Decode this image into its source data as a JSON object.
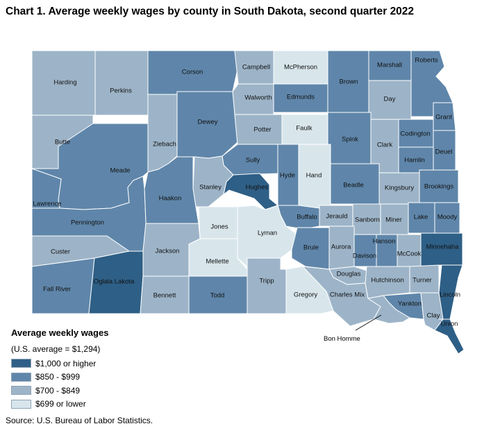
{
  "title": "Chart 1. Average weekly wages by county in South Dakota, second quarter 2022",
  "legend": {
    "title": "Average weekly wages",
    "note": "(U.S. average = $1,294)",
    "items": [
      {
        "label": "$1,000 or higher",
        "color": "#2e5f86"
      },
      {
        "label": "$850 - $999",
        "color": "#5f86aa"
      },
      {
        "label": "$700 - $849",
        "color": "#9db4c8"
      },
      {
        "label": "$699 or lower",
        "color": "#d8e6ec"
      }
    ]
  },
  "source": "Source: U.S. Bureau of Labor Statistics.",
  "callout_label": "Bon Homme",
  "counties": [
    {
      "name": "Harding",
      "cls": 2
    },
    {
      "name": "Perkins",
      "cls": 2
    },
    {
      "name": "Corson",
      "cls": 1
    },
    {
      "name": "Campbell",
      "cls": 2
    },
    {
      "name": "McPherson",
      "cls": 3
    },
    {
      "name": "Brown",
      "cls": 1
    },
    {
      "name": "Marshall",
      "cls": 1
    },
    {
      "name": "Roberts",
      "cls": 1
    },
    {
      "name": "Walworth",
      "cls": 2
    },
    {
      "name": "Edmunds",
      "cls": 1
    },
    {
      "name": "Day",
      "cls": 2
    },
    {
      "name": "Grant",
      "cls": 1
    },
    {
      "name": "Butte",
      "cls": 2
    },
    {
      "name": "Ziebach",
      "cls": 2
    },
    {
      "name": "Dewey",
      "cls": 1
    },
    {
      "name": "Potter",
      "cls": 2
    },
    {
      "name": "Faulk",
      "cls": 3
    },
    {
      "name": "Spink",
      "cls": 1
    },
    {
      "name": "Clark",
      "cls": 2
    },
    {
      "name": "Codington",
      "cls": 1
    },
    {
      "name": "Deuel",
      "cls": 1
    },
    {
      "name": "Meade",
      "cls": 1
    },
    {
      "name": "Sully",
      "cls": 1
    },
    {
      "name": "Hyde",
      "cls": 1
    },
    {
      "name": "Hand",
      "cls": 3
    },
    {
      "name": "Hamlin",
      "cls": 1
    },
    {
      "name": "Lawrence",
      "cls": 1
    },
    {
      "name": "Stanley",
      "cls": 2
    },
    {
      "name": "Hughes",
      "cls": 0
    },
    {
      "name": "Beadle",
      "cls": 1
    },
    {
      "name": "Kingsbury",
      "cls": 2
    },
    {
      "name": "Brookings",
      "cls": 1
    },
    {
      "name": "Haakon",
      "cls": 1
    },
    {
      "name": "Pennington",
      "cls": 1
    },
    {
      "name": "Buffalo",
      "cls": 1
    },
    {
      "name": "Jerauld",
      "cls": 2
    },
    {
      "name": "Sanborn",
      "cls": 2
    },
    {
      "name": "Miner",
      "cls": 2
    },
    {
      "name": "Lake",
      "cls": 1
    },
    {
      "name": "Moody",
      "cls": 1
    },
    {
      "name": "Jones",
      "cls": 3
    },
    {
      "name": "Lyman",
      "cls": 3
    },
    {
      "name": "Custer",
      "cls": 2
    },
    {
      "name": "Jackson",
      "cls": 2
    },
    {
      "name": "Brule",
      "cls": 1
    },
    {
      "name": "Aurora",
      "cls": 2
    },
    {
      "name": "Davison",
      "cls": 1
    },
    {
      "name": "Hanson",
      "cls": 1
    },
    {
      "name": "McCook",
      "cls": 2
    },
    {
      "name": "Minnehaha",
      "cls": 0
    },
    {
      "name": "Mellette",
      "cls": 3
    },
    {
      "name": "Fall River",
      "cls": 1
    },
    {
      "name": "Oglala Lakota",
      "cls": 0
    },
    {
      "name": "Bennett",
      "cls": 2
    },
    {
      "name": "Todd",
      "cls": 1
    },
    {
      "name": "Tripp",
      "cls": 2
    },
    {
      "name": "Gregory",
      "cls": 3
    },
    {
      "name": "Douglas",
      "cls": 2
    },
    {
      "name": "Charles Mix",
      "cls": 2
    },
    {
      "name": "Hutchinson",
      "cls": 2
    },
    {
      "name": "Turner",
      "cls": 2
    },
    {
      "name": "Lincoln",
      "cls": 0
    },
    {
      "name": "Yankton",
      "cls": 1
    },
    {
      "name": "Clay",
      "cls": 2
    },
    {
      "name": "Union",
      "cls": 0
    },
    {
      "name": "Bon Homme",
      "cls": 2
    }
  ]
}
